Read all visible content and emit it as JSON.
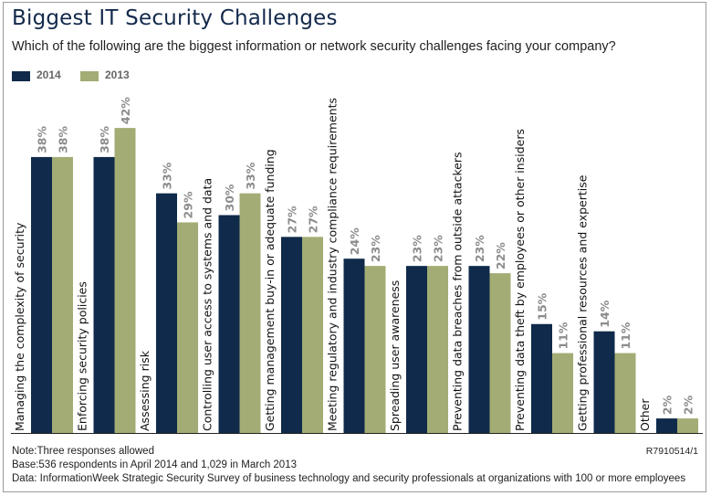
{
  "title": "Biggest IT Security Challenges",
  "subtitle": "Which of the following are the biggest information or network security challenges facing your company?",
  "colors": {
    "series_2014": "#0f2a4a",
    "series_2013": "#a3ac74",
    "value_label": "#8c8c8c",
    "axis": "#222222"
  },
  "chart_data": {
    "type": "bar",
    "orientation": "vertical",
    "categories": [
      "Managing the complexity of security",
      "Enforcing security policies",
      "Assessing risk",
      "Controlling user access to systems and data",
      "Getting management buy-in or adequate funding",
      "Meeting regulatory and industry compliance requirements",
      "Spreading user awareness",
      "Preventing data breaches from outside attackers",
      "Preventing data theft by employees or other insiders",
      "Getting professional resources and expertise",
      "Other"
    ],
    "series": [
      {
        "name": "2014",
        "values": [
          38,
          38,
          33,
          30,
          27,
          24,
          23,
          23,
          15,
          14,
          2
        ]
      },
      {
        "name": "2013",
        "values": [
          38,
          42,
          29,
          33,
          27,
          23,
          23,
          22,
          11,
          11,
          2
        ]
      }
    ],
    "value_suffix": "%",
    "ylim": [
      0,
      42
    ],
    "grid": false,
    "legend": "top-left"
  },
  "footnotes": {
    "note": "Note:Three responses allowed",
    "base": "Base:536 respondents in April 2014 and 1,029 in March 2013",
    "data": "Data: InformationWeek Strategic Security Survey of business technology and security professionals at organizations with 100 or more employees"
  },
  "ref_code": "R7910514/1"
}
